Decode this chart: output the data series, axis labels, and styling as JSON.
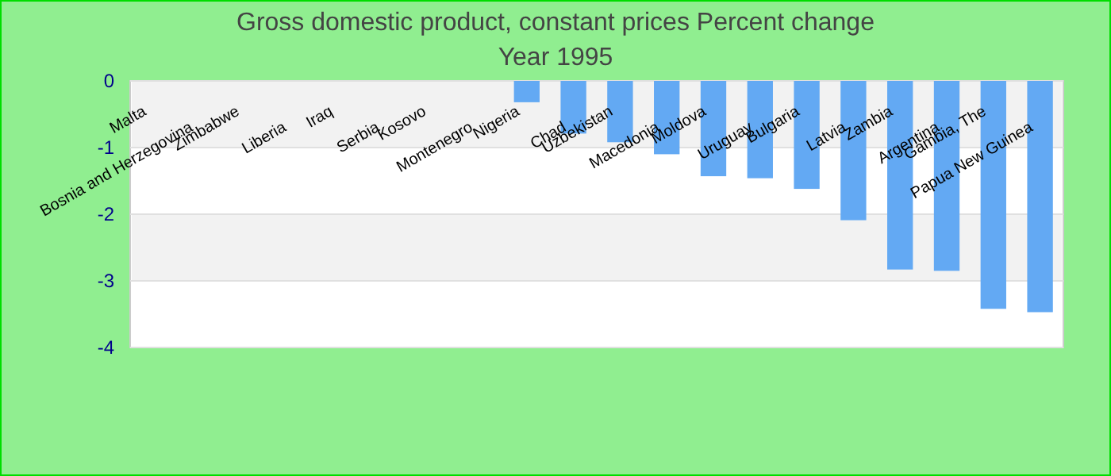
{
  "chart_data": {
    "type": "bar",
    "title": "Gross domestic product, constant prices  Percent change",
    "subtitle": "Year 1995",
    "categories": [
      "Malta",
      "Bosnia and Herzegovina",
      "Zimbabwe",
      "Liberia",
      "Iraq",
      "Serbia",
      "Kosovo",
      "Montenegro",
      "Nigeria",
      "Chad",
      "Uzbekistan",
      "Macedonia",
      "Moldova",
      "Uruguay",
      "Bulgaria",
      "Latvia",
      "Zambia",
      "Argentina",
      "Gambia, The",
      "Papua New Guinea"
    ],
    "values": [
      null,
      null,
      null,
      null,
      null,
      null,
      null,
      null,
      -0.32,
      -0.79,
      -0.92,
      -1.1,
      -1.43,
      -1.46,
      -1.62,
      -2.09,
      -2.83,
      -2.85,
      -3.42,
      -3.47
    ],
    "color": "#63a9f3",
    "ylim": [
      -4,
      0
    ],
    "yticks": [
      0,
      -1,
      -2,
      -3,
      -4
    ],
    "grid": "y"
  }
}
